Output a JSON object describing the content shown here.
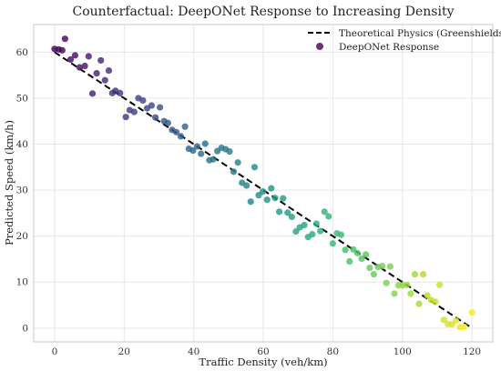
{
  "chart_data": {
    "type": "scatter",
    "title": "Counterfactual: DeepONet Response to Increasing Density",
    "xlabel": "Traffic Density (veh/km)",
    "ylabel": "Predicted Speed (km/h)",
    "xlim": [
      -6,
      126
    ],
    "ylim": [
      -3,
      66
    ],
    "xticks": [
      0,
      20,
      40,
      60,
      80,
      100,
      120
    ],
    "yticks": [
      0,
      10,
      20,
      30,
      40,
      50,
      60
    ],
    "grid": true,
    "legend_position": "top-right",
    "series": [
      {
        "name": "Theoretical Physics (Greenshields)",
        "type": "line",
        "style": "dashed",
        "color": "#000000",
        "x": [
          0,
          120
        ],
        "y": [
          60,
          0
        ]
      },
      {
        "name": "DeepONet Response",
        "type": "scatter",
        "colormap": "viridis",
        "x": [
          0.0,
          1.2,
          2.2,
          3.0,
          4.6,
          5.9,
          7.2,
          8.7,
          9.8,
          10.9,
          12.1,
          13.3,
          14.5,
          15.6,
          16.6,
          17.5,
          18.8,
          20.5,
          21.6,
          22.9,
          24.1,
          25.4,
          26.6,
          27.9,
          29.0,
          30.3,
          31.5,
          32.6,
          33.8,
          35.0,
          36.3,
          37.5,
          38.6,
          39.8,
          41.0,
          42.1,
          43.3,
          44.5,
          45.6,
          46.8,
          48.0,
          49.2,
          50.3,
          51.5,
          52.7,
          53.9,
          55.2,
          56.4,
          57.5,
          58.7,
          59.9,
          61.1,
          62.3,
          63.4,
          64.6,
          65.7,
          67.0,
          68.2,
          69.4,
          70.5,
          71.8,
          72.9,
          74.1,
          75.3,
          76.4,
          77.6,
          78.8,
          80.0,
          81.2,
          82.4,
          83.6,
          84.8,
          85.9,
          87.1,
          88.3,
          89.5,
          90.6,
          91.8,
          93.0,
          94.2,
          95.4,
          96.5,
          97.7,
          98.9,
          100.1,
          101.3,
          102.4,
          103.6,
          104.8,
          106.0,
          107.2,
          108.3,
          109.5,
          110.7,
          111.9,
          113.1,
          114.2,
          115.4,
          116.6,
          117.8,
          120.0
        ],
        "y": [
          60.7,
          60.6,
          60.4,
          62.9,
          58.4,
          59.3,
          56.7,
          57.0,
          59.1,
          51.0,
          55.4,
          58.2,
          53.9,
          56.0,
          51.1,
          51.6,
          51.1,
          45.9,
          47.4,
          47.0,
          50.0,
          49.5,
          47.8,
          48.4,
          45.8,
          48.0,
          45.0,
          44.6,
          43.1,
          42.6,
          41.7,
          43.8,
          39.0,
          38.6,
          39.5,
          37.9,
          40.1,
          36.5,
          36.7,
          38.5,
          39.2,
          38.9,
          38.4,
          34.0,
          36.0,
          31.6,
          31.0,
          27.5,
          35.0,
          28.9,
          29.7,
          27.9,
          30.4,
          28.3,
          25.3,
          28.2,
          25.1,
          24.2,
          21.0,
          21.9,
          22.4,
          19.8,
          20.4,
          22.7,
          21.1,
          25.3,
          24.3,
          18.4,
          20.6,
          20.3,
          17.0,
          14.5,
          17.1,
          16.3,
          15.1,
          16.0,
          13.1,
          11.7,
          13.3,
          13.5,
          9.8,
          13.4,
          7.5,
          9.3,
          9.3,
          9.4,
          7.5,
          11.7,
          5.3,
          11.7,
          7.1,
          6.1,
          5.7,
          9.4,
          1.8,
          0.9,
          0.8,
          1.6,
          0.2,
          0.3,
          3.4
        ]
      }
    ]
  }
}
